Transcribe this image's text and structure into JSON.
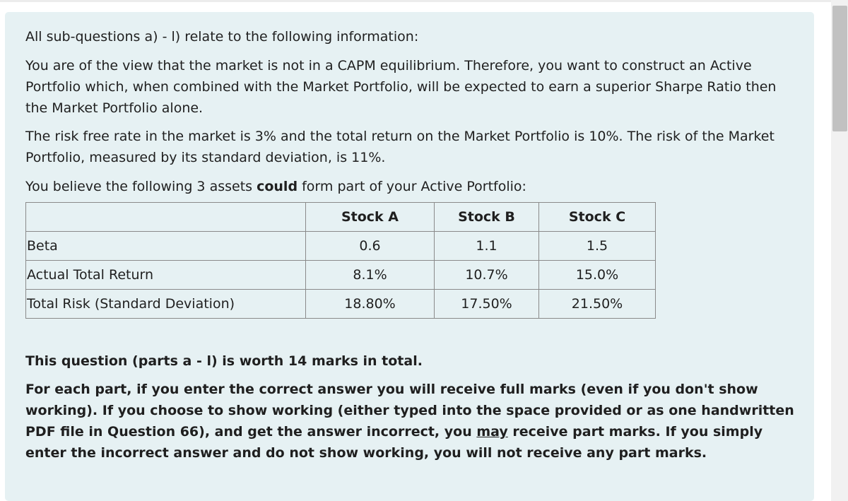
{
  "intro": "All sub-questions a) - l) relate to the following information:",
  "view": "You are of the view that the market is not in a CAPM equilibrium.  Therefore, you want to construct an Active Portfolio which, when combined with the Market Portfolio, will be expected to earn a superior Sharpe Ratio then the Market Portfolio alone.",
  "risk": "The risk free rate in the market is 3% and the total return on the Market Portfolio is 10%.  The risk of the Market Portfolio, measured by its standard deviation, is 11%.",
  "assets_sentence": {
    "before": "You believe the following 3 assets ",
    "emphasis": "could",
    "after": " form part of your Active Portfolio:"
  },
  "table": {
    "headers": [
      "",
      "Stock A",
      "Stock B",
      "Stock C"
    ],
    "rows": [
      {
        "label": "Beta",
        "values": [
          "0.6",
          "1.1",
          "1.5"
        ]
      },
      {
        "label": "Actual Total Return",
        "values": [
          "8.1%",
          "10.7%",
          "15.0%"
        ]
      },
      {
        "label": "Total Risk (Standard Deviation)",
        "values": [
          "18.80%",
          "17.50%",
          "21.50%"
        ]
      }
    ]
  },
  "marks": "This question (parts a - l) is worth 14 marks in total.",
  "instructions": {
    "part1": "For each part, if you enter the correct answer you will receive full marks (even if you don't show working).  If you choose to show working (either typed into the space provided or as one handwritten PDF file in Question 66), and get the answer incorrect, you ",
    "underlined": "may",
    "part2": " receive part marks.  If you simply enter the incorrect answer and do not show working, you will not receive any part marks."
  },
  "colors": {
    "panel_background": "#e6f1f3",
    "text": "#1f1f1f",
    "table_border": "#8a8a8a"
  }
}
